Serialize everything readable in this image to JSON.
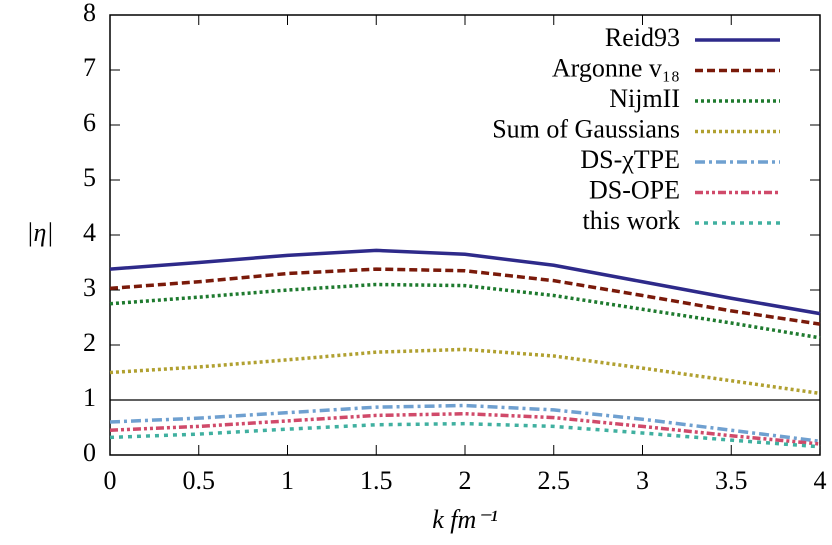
{
  "chart_data": {
    "type": "line",
    "x": [
      0,
      0.5,
      1,
      1.5,
      2,
      2.5,
      3,
      3.5,
      4
    ],
    "series": [
      {
        "name": "Reid93",
        "color": "#2e2a8a",
        "values": [
          3.38,
          3.5,
          3.63,
          3.72,
          3.65,
          3.45,
          3.15,
          2.85,
          2.57
        ]
      },
      {
        "name": "Argonne v₁₈",
        "color": "#7a1a0a",
        "values": [
          3.03,
          3.15,
          3.3,
          3.38,
          3.35,
          3.17,
          2.9,
          2.62,
          2.38
        ]
      },
      {
        "name": "NijmII",
        "color": "#1e7a2e",
        "values": [
          2.75,
          2.87,
          3.0,
          3.1,
          3.08,
          2.9,
          2.65,
          2.4,
          2.13
        ]
      },
      {
        "name": "Sum of Gaussians",
        "color": "#b0a030",
        "values": [
          1.5,
          1.6,
          1.73,
          1.87,
          1.92,
          1.8,
          1.58,
          1.35,
          1.12
        ]
      },
      {
        "name": "DS-χTPE",
        "color": "#6fa0d0",
        "values": [
          0.6,
          0.67,
          0.77,
          0.87,
          0.9,
          0.82,
          0.65,
          0.45,
          0.25
        ]
      },
      {
        "name": "DS-OPE",
        "color": "#d04a6a",
        "values": [
          0.45,
          0.52,
          0.62,
          0.72,
          0.75,
          0.68,
          0.52,
          0.35,
          0.2
        ]
      },
      {
        "name": "this work",
        "color": "#40b0a0",
        "values": [
          0.32,
          0.38,
          0.47,
          0.55,
          0.57,
          0.52,
          0.4,
          0.27,
          0.15
        ]
      }
    ],
    "hline": 1,
    "xlabel": "k fm⁻¹",
    "ylabel": "|η|",
    "xlim": [
      0,
      4
    ],
    "ylim": [
      0,
      8
    ],
    "xticks": [
      0,
      0.5,
      1,
      1.5,
      2,
      2.5,
      3,
      3.5,
      4
    ],
    "yticks": [
      0,
      1,
      2,
      3,
      4,
      5,
      6,
      7,
      8
    ],
    "legend": "top-right"
  }
}
